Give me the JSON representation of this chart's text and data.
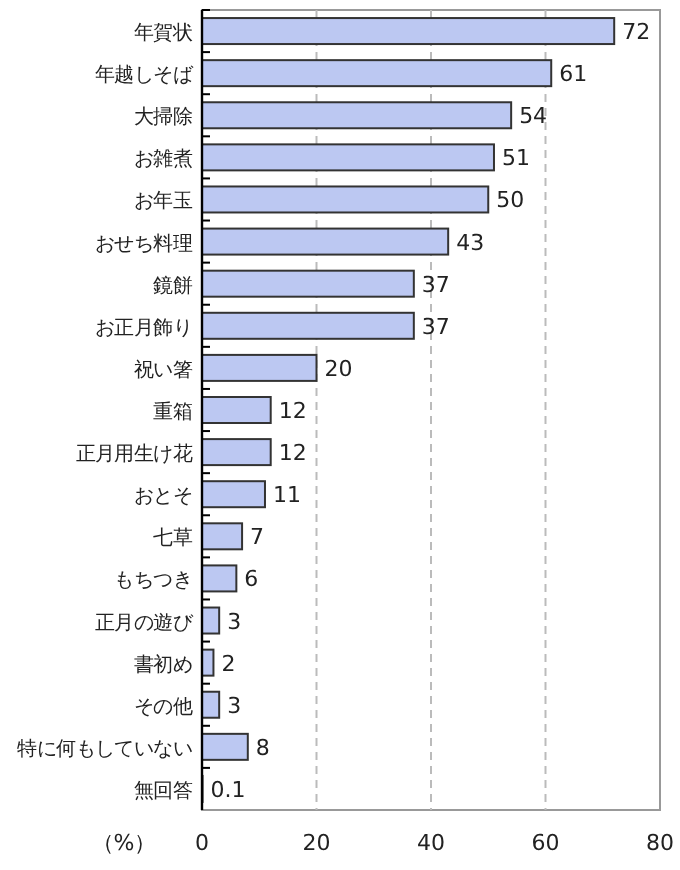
{
  "chart_data": {
    "type": "bar",
    "orientation": "horizontal",
    "xlabel": "（%）",
    "categories": [
      "年賀状",
      "年越しそば",
      "大掃除",
      "お雑煮",
      "お年玉",
      "おせち料理",
      "鏡餅",
      "お正月飾り",
      "祝い箸",
      "重箱",
      "正月用生け花",
      "おとそ",
      "七草",
      "もちつき",
      "正月の遊び",
      "書初め",
      "その他",
      "特に何もしていない",
      "無回答"
    ],
    "values": [
      72,
      61,
      54,
      51,
      50,
      43,
      37,
      37,
      20,
      12,
      12,
      11,
      7,
      6,
      3,
      2,
      3,
      8,
      0.1
    ],
    "color": "#bcc8f2",
    "xlim": [
      0,
      80
    ],
    "xticks": [
      0,
      20,
      40,
      60,
      80
    ],
    "grid": "x",
    "data_labels": true
  }
}
